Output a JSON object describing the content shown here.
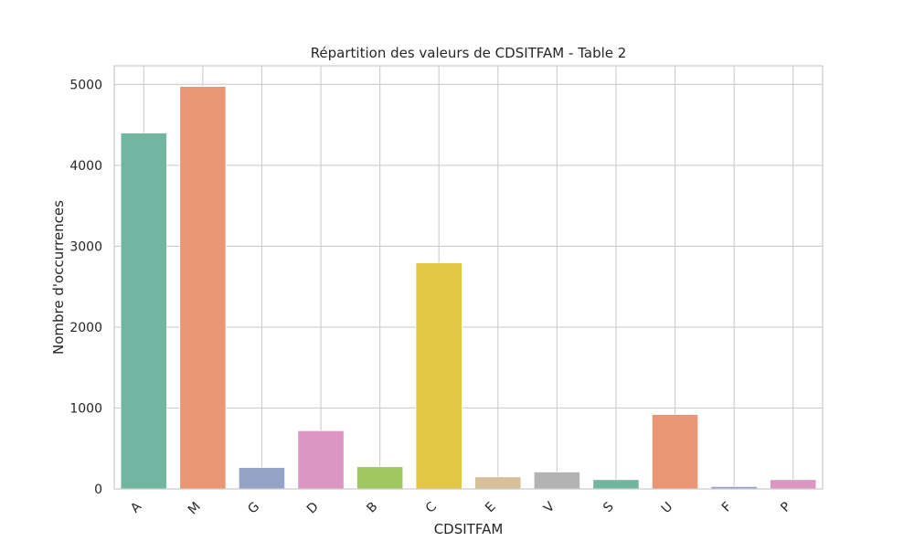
{
  "chart_data": {
    "type": "bar",
    "title": "Répartition des valeurs de CDSITFAM - Table 2",
    "xlabel": "CDSITFAM",
    "ylabel": "Nombre d'occurrences",
    "categories": [
      "A",
      "M",
      "G",
      "D",
      "B",
      "C",
      "E",
      "V",
      "S",
      "U",
      "F",
      "P"
    ],
    "values": [
      4400,
      4975,
      265,
      720,
      275,
      2795,
      150,
      210,
      115,
      920,
      30,
      115
    ],
    "colors": [
      "#72b6a1",
      "#e99675",
      "#95a3c6",
      "#dc96c3",
      "#a0c861",
      "#e2c745",
      "#d8c09a",
      "#b3b3b3",
      "#72b6a1",
      "#e99675",
      "#95a3c6",
      "#dc96c3"
    ],
    "ylim": [
      0,
      5230
    ],
    "yticks": [
      0,
      1000,
      2000,
      3000,
      4000,
      5000
    ],
    "grid": true,
    "legend": "none"
  }
}
